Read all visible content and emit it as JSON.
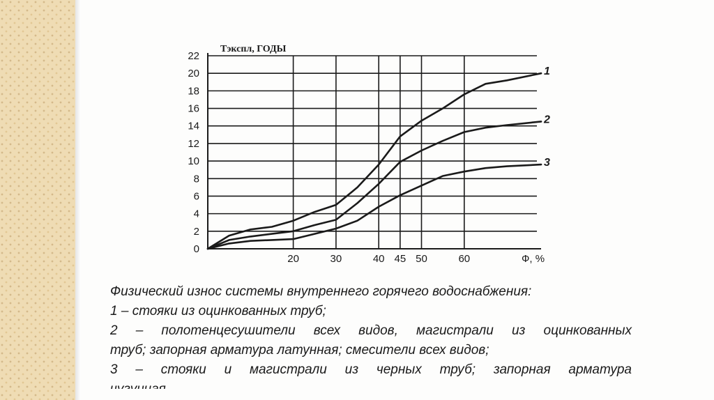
{
  "chart_data": {
    "type": "line",
    "ylabel": "Тэкспл, ГОДЫ",
    "xlabel": "Ф, %",
    "ylim": [
      0,
      22
    ],
    "xlim": [
      0,
      77
    ],
    "yticks": [
      0,
      2,
      4,
      6,
      8,
      10,
      12,
      14,
      16,
      18,
      20,
      22
    ],
    "xticks": [
      20,
      30,
      40,
      45,
      50,
      60
    ],
    "xtick_label": "Ф, %",
    "grid": true,
    "series": [
      {
        "name": "1",
        "x": [
          0,
          5,
          10,
          15,
          20,
          25,
          30,
          35,
          40,
          45,
          50,
          55,
          60,
          65,
          70,
          78
        ],
        "y": [
          0,
          1.5,
          2.2,
          2.5,
          3.2,
          4.2,
          5,
          7,
          9.6,
          12.8,
          14.6,
          16,
          17.6,
          18.8,
          19.2,
          20
        ]
      },
      {
        "name": "2",
        "x": [
          0,
          5,
          10,
          15,
          20,
          25,
          30,
          35,
          40,
          45,
          50,
          55,
          60,
          65,
          70,
          78
        ],
        "y": [
          0,
          1.0,
          1.4,
          1.7,
          2.0,
          2.7,
          3.3,
          5.2,
          7.4,
          9.9,
          11.2,
          12.3,
          13.3,
          13.8,
          14.1,
          14.5
        ]
      },
      {
        "name": "3",
        "x": [
          0,
          5,
          10,
          15,
          20,
          25,
          30,
          35,
          40,
          45,
          50,
          55,
          60,
          65,
          70,
          78
        ],
        "y": [
          0,
          0.6,
          0.9,
          1.0,
          1.1,
          1.7,
          2.3,
          3.2,
          4.8,
          6.1,
          7.2,
          8.3,
          8.8,
          9.2,
          9.4,
          9.6
        ]
      }
    ]
  },
  "caption": {
    "line1": "Физический износ системы внутреннего горячего водоснабжения:",
    "line2": "1 – стояки из оцинкованных труб;",
    "line3": "2 – полотенцесушители всех видов, магистрали из оцинкованных",
    "line4": "труб; запорная арматура латунная; смесители всех видов;",
    "line5": "3 – стояки и магистрали из черных труб;  запорная арматура",
    "line6": "чугунная"
  },
  "colors": {
    "ink": "#1a1a1a",
    "strip": "#efdcb4"
  }
}
